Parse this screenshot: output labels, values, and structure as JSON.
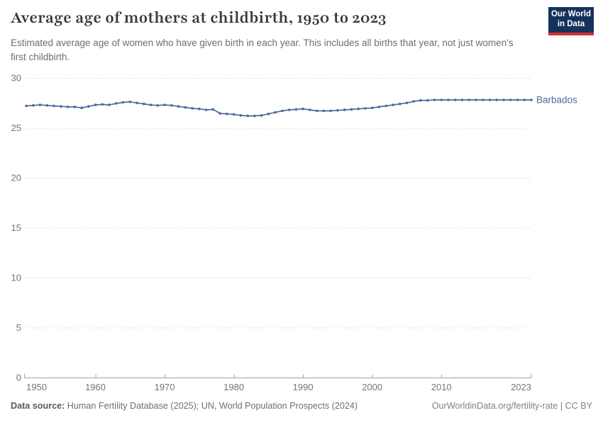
{
  "header": {
    "title": "Average age of mothers at childbirth, 1950 to 2023",
    "subtitle": "Estimated average age of women who have given birth in each year. This includes all births that year, not just women's first childbirth.",
    "logo": {
      "line1": "Our World",
      "line2": "in Data",
      "bg_color": "#15325b",
      "accent_color": "#d1322e"
    }
  },
  "chart_data": {
    "type": "line",
    "title": "Average age of mothers at childbirth, 1950 to 2023",
    "xlabel": "",
    "ylabel": "",
    "xlim": [
      1950,
      2023
    ],
    "ylim": [
      0,
      30
    ],
    "x_ticks": [
      1950,
      1960,
      1970,
      1980,
      1990,
      2000,
      2010,
      2023
    ],
    "y_ticks": [
      0,
      5,
      10,
      15,
      20,
      25,
      30
    ],
    "grid": "horizontal-dashed",
    "legend_position": "end-of-line-label",
    "series": [
      {
        "name": "Barbados",
        "color": "#4c6a9c",
        "x": [
          1950,
          1951,
          1952,
          1953,
          1954,
          1955,
          1956,
          1957,
          1958,
          1959,
          1960,
          1961,
          1962,
          1963,
          1964,
          1965,
          1966,
          1967,
          1968,
          1969,
          1970,
          1971,
          1972,
          1973,
          1974,
          1975,
          1976,
          1977,
          1978,
          1979,
          1980,
          1981,
          1982,
          1983,
          1984,
          1985,
          1986,
          1987,
          1988,
          1989,
          1990,
          1991,
          1992,
          1993,
          1994,
          1995,
          1996,
          1997,
          1998,
          1999,
          2000,
          2001,
          2002,
          2003,
          2004,
          2005,
          2006,
          2007,
          2008,
          2009,
          2010,
          2011,
          2012,
          2013,
          2014,
          2015,
          2016,
          2017,
          2018,
          2019,
          2020,
          2021,
          2022,
          2023
        ],
        "values": [
          27.2,
          27.25,
          27.3,
          27.25,
          27.2,
          27.15,
          27.1,
          27.1,
          27.0,
          27.15,
          27.3,
          27.35,
          27.3,
          27.45,
          27.55,
          27.6,
          27.5,
          27.4,
          27.3,
          27.25,
          27.3,
          27.25,
          27.15,
          27.05,
          26.95,
          26.9,
          26.8,
          26.85,
          26.45,
          26.4,
          26.35,
          26.25,
          26.2,
          26.2,
          26.25,
          26.4,
          26.55,
          26.7,
          26.8,
          26.85,
          26.9,
          26.8,
          26.7,
          26.7,
          26.7,
          26.75,
          26.8,
          26.85,
          26.9,
          26.95,
          27.0,
          27.1,
          27.2,
          27.3,
          27.4,
          27.5,
          27.65,
          27.75,
          27.75,
          27.8,
          27.8,
          27.8,
          27.8,
          27.8,
          27.8,
          27.8,
          27.8,
          27.8,
          27.8,
          27.8,
          27.8,
          27.8,
          27.8,
          27.8
        ]
      }
    ]
  },
  "footer": {
    "datasource_label": "Data source:",
    "datasource_text": " Human Fertility Database (2025); UN, World Population Prospects (2024)",
    "credit": "OurWorldinData.org/fertility-rate | CC BY"
  },
  "colors": {
    "line": "#4c6a9c",
    "grid": "#dcdcdc",
    "axis": "#a0a0a0",
    "tick_label": "#757575",
    "title": "#383838",
    "subtitle": "#6d6d6d"
  }
}
